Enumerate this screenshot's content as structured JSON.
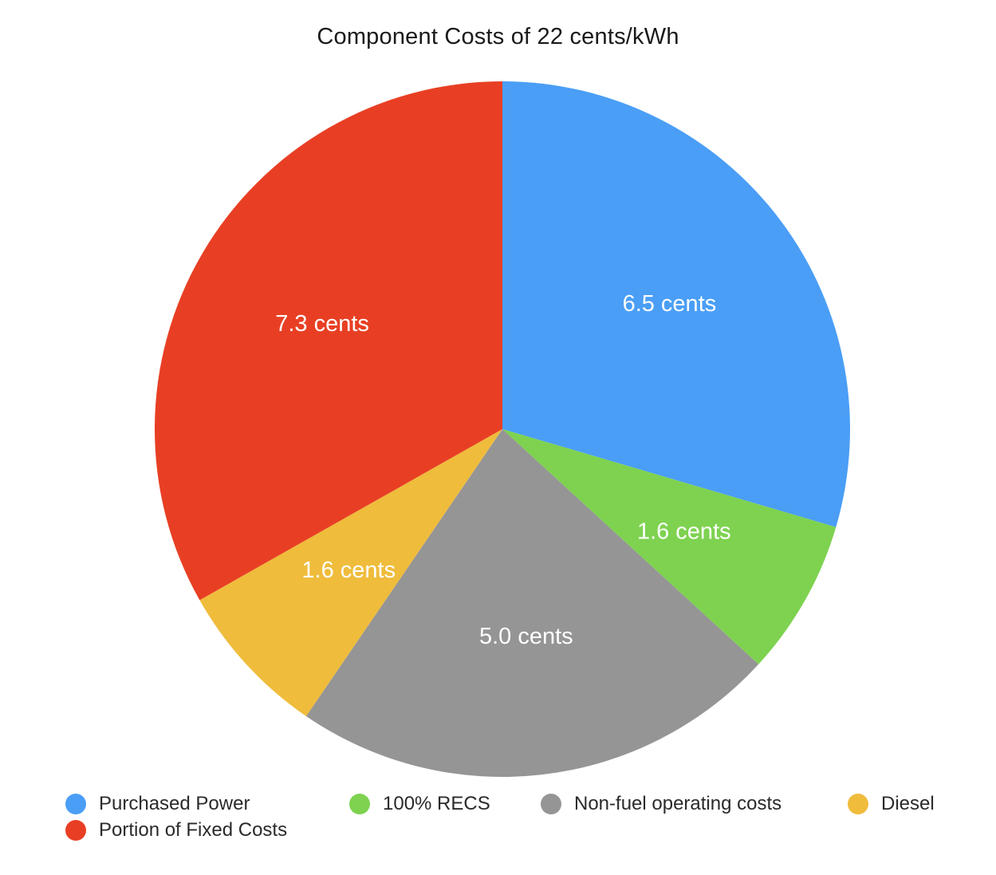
{
  "chart_data": {
    "type": "pie",
    "title": "Component Costs of 22 cents/kWh",
    "slices": [
      {
        "name": "Purchased Power",
        "value": 6.5,
        "label": "6.5 cents",
        "color": "#4a9ef5"
      },
      {
        "name": "100% RECS",
        "value": 1.6,
        "label": "1.6 cents",
        "color": "#7ed250"
      },
      {
        "name": "Non-fuel operating costs",
        "value": 5.0,
        "label": "5.0 cents",
        "color": "#959595"
      },
      {
        "name": "Diesel",
        "value": 1.6,
        "label": "1.6 cents",
        "color": "#efbc3c"
      },
      {
        "name": "Portion of Fixed Costs",
        "value": 7.3,
        "label": "7.3 cents",
        "color": "#e83f24"
      }
    ],
    "legend_placement": "bottom"
  }
}
